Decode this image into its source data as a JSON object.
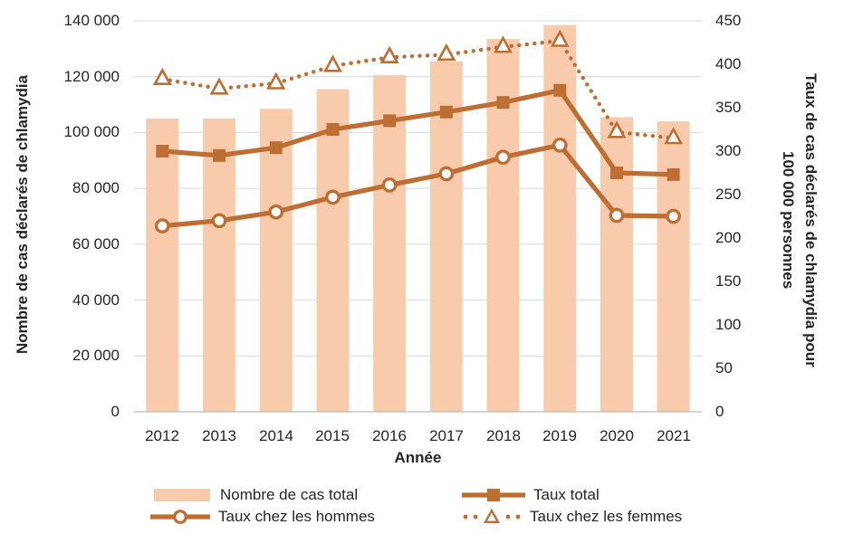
{
  "chart_data": {
    "type": "combo-bar-line",
    "title": "",
    "categories": [
      "2012",
      "2013",
      "2014",
      "2015",
      "2016",
      "2017",
      "2018",
      "2019",
      "2020",
      "2021"
    ],
    "xlabel": "Année",
    "left_axis": {
      "label": "Nombre de cas déclarés de chlamydia",
      "min": 0,
      "max": 140000,
      "ticks": [
        "0",
        "20 000",
        "40 000",
        "60 000",
        "80 000",
        "100 000",
        "120 000",
        "140 000"
      ]
    },
    "right_axis": {
      "label_line1": "Taux de cas déclarés de chlamydia pour",
      "label_line2": "100 000 personnes",
      "min": 0,
      "max": 450,
      "ticks": [
        "0",
        "50",
        "100",
        "150",
        "200",
        "250",
        "300",
        "350",
        "400",
        "450"
      ]
    },
    "series": [
      {
        "name": "Nombre de cas total",
        "type": "bar",
        "axis": "left",
        "marker": "none",
        "line_style": "none",
        "values": [
          105000,
          105000,
          108500,
          115500,
          120500,
          125500,
          133500,
          138500,
          105500,
          104000
        ]
      },
      {
        "name": "Taux total",
        "type": "line",
        "axis": "right",
        "marker": "square",
        "line_style": "solid",
        "values": [
          300,
          295,
          304,
          325,
          335,
          345,
          356,
          370,
          275,
          273
        ]
      },
      {
        "name": "Taux chez les hommes",
        "type": "line",
        "axis": "right",
        "marker": "circle",
        "line_style": "solid",
        "values": [
          214,
          220,
          230,
          247,
          261,
          274,
          293,
          307,
          226,
          225
        ]
      },
      {
        "name": "Taux chez les femmes",
        "type": "line",
        "axis": "right",
        "marker": "triangle",
        "line_style": "dotted",
        "values": [
          383,
          372,
          378,
          398,
          408,
          411,
          420,
          427,
          322,
          315
        ]
      }
    ],
    "legend_position": "bottom",
    "grid": "horizontal",
    "colors": {
      "bar": "#F8CBAD",
      "line": "#BE6E32",
      "marker_fill": "#FFFFFF",
      "grid": "#D9D9D9",
      "baseline": "#BFBFBF",
      "text": "#262626"
    }
  }
}
